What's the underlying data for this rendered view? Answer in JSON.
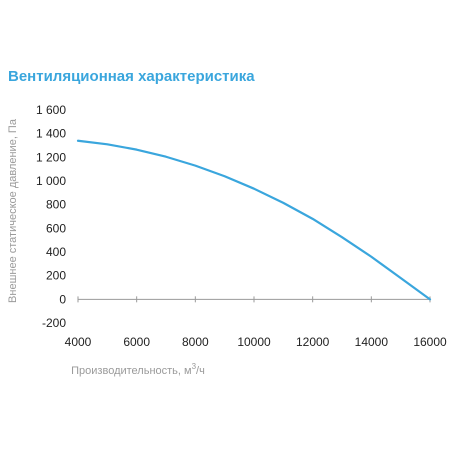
{
  "chart_data": {
    "type": "line",
    "title": "Вентиляционная характеристика",
    "xlabel": "Производительность, м",
    "xlabel_sup": "3",
    "xlabel_unit": "/ч",
    "ylabel": "Внешнее статическое давление, Па",
    "xlim": [
      4000,
      16000
    ],
    "ylim": [
      -200,
      1600
    ],
    "x_ticks": [
      4000,
      6000,
      8000,
      10000,
      12000,
      14000,
      16000
    ],
    "x_tick_labels": [
      "4000",
      "6000",
      "8000",
      "10000",
      "12000",
      "14000",
      "16000"
    ],
    "y_ticks": [
      1600,
      1400,
      1200,
      1000,
      800,
      600,
      400,
      200,
      0,
      -200
    ],
    "y_tick_labels": [
      "1 600",
      "1 400",
      "1 200",
      "1 000",
      "800",
      "600",
      "400",
      "200",
      "0",
      "-200"
    ],
    "grid": false,
    "series": [
      {
        "x": [
          4000,
          5000,
          6000,
          7000,
          8000,
          9000,
          10000,
          11000,
          12000,
          13000,
          14000,
          15000,
          16000
        ],
        "y": [
          1340,
          1310,
          1265,
          1205,
          1130,
          1040,
          935,
          815,
          680,
          525,
          360,
          180,
          0
        ]
      }
    ],
    "colors": {
      "line": "#3aa6dd",
      "axis": "#9a9a9a",
      "title": "#3aa6dd"
    }
  }
}
